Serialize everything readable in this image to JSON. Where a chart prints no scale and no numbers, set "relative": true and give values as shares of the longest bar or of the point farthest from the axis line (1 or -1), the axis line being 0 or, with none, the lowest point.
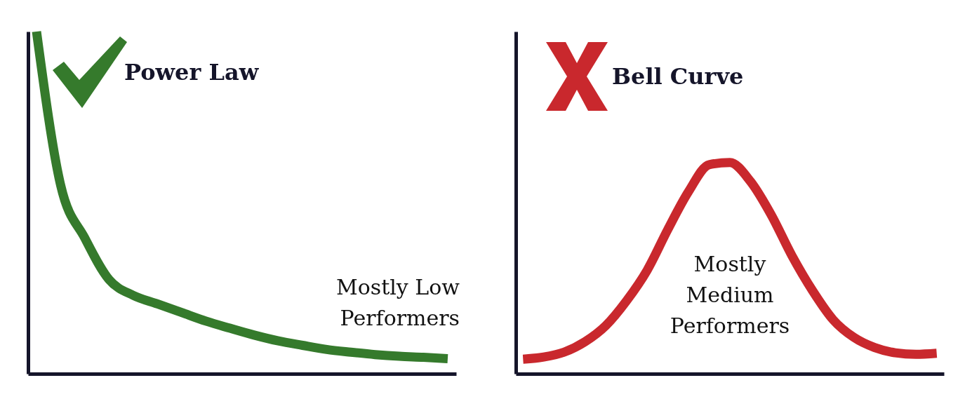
{
  "chart_data": [
    {
      "type": "line",
      "title": "Power Law",
      "relative": true,
      "categories": [
        null,
        null,
        null,
        null,
        null,
        null,
        null,
        null,
        null,
        null,
        null,
        null,
        null,
        null,
        null,
        null,
        null,
        null
      ],
      "annotations": [
        "Mostly Low Performers"
      ],
      "series": [
        {
          "color": "#357a2c",
          "values": [
            1,
            0.55,
            0.396,
            0.275,
            0.229,
            0.204,
            0.179,
            0.154,
            0.133,
            0.113,
            0.096,
            0.083,
            0.071,
            0.063,
            0.056,
            0.051,
            0.048,
            0.044
          ]
        }
      ]
    },
    {
      "type": "line",
      "title": "Bell Curve",
      "relative": true,
      "categories": [
        null,
        null,
        null,
        null,
        null,
        null,
        null,
        null,
        null,
        null,
        null,
        null,
        null,
        null,
        null,
        null,
        null,
        null,
        null,
        null,
        null
      ],
      "annotations": [
        "Mostly Medium Performers"
      ],
      "series": [
        {
          "color": "#c9282d",
          "values": [
            0.069,
            0.079,
            0.103,
            0.152,
            0.228,
            0.345,
            0.49,
            0.683,
            0.862,
            0.99,
            1,
            0.91,
            0.752,
            0.559,
            0.393,
            0.255,
            0.172,
            0.124,
            0.099,
            0.092,
            0.097
          ]
        }
      ]
    }
  ]
}
